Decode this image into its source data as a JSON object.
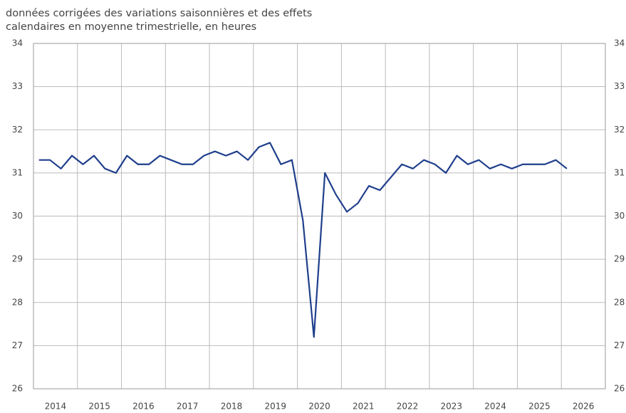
{
  "chart_data": {
    "type": "line",
    "subtitle": [
      "données corrigées des variations saisonnières et des effets",
      "calendaires en moyenne trimestrielle, en heures"
    ],
    "x": [
      2014.125,
      2014.375,
      2014.625,
      2014.875,
      2015.125,
      2015.375,
      2015.625,
      2015.875,
      2016.125,
      2016.375,
      2016.625,
      2016.875,
      2017.125,
      2017.375,
      2017.625,
      2017.875,
      2018.125,
      2018.375,
      2018.625,
      2018.875,
      2019.125,
      2019.375,
      2019.625,
      2019.875,
      2020.125,
      2020.375,
      2020.625,
      2020.875,
      2021.125,
      2021.375,
      2021.625,
      2021.875,
      2022.125,
      2022.375,
      2022.625,
      2022.875,
      2023.125,
      2023.375,
      2023.625,
      2023.875,
      2024.125,
      2024.375,
      2024.625,
      2024.875,
      2025.125,
      2025.375,
      2025.625,
      2025.875,
      2026.125
    ],
    "series": [
      {
        "color": "#1f3f8c",
        "values": [
          31.3,
          31.3,
          31.1,
          31.4,
          31.2,
          31.4,
          31.1,
          31.0,
          31.4,
          31.2,
          31.2,
          31.4,
          31.3,
          31.2,
          31.2,
          31.4,
          31.5,
          31.4,
          31.5,
          31.3,
          31.6,
          31.7,
          31.2,
          31.3,
          29.9,
          27.2,
          31.0,
          30.5,
          30.1,
          30.3,
          30.7,
          30.6,
          30.9,
          31.2,
          31.1,
          31.3,
          31.2,
          31.0,
          31.4,
          31.2,
          31.3,
          31.1,
          31.2,
          31.1,
          31.2,
          31.2,
          31.2,
          31.3,
          31.1
        ]
      }
    ],
    "xlim": [
      2014,
      2027
    ],
    "xticks": [
      2014,
      2015,
      2016,
      2017,
      2018,
      2019,
      2020,
      2021,
      2022,
      2023,
      2024,
      2025,
      2026
    ],
    "ylim": [
      26,
      34
    ],
    "yticks": [
      26,
      27,
      28,
      29,
      30,
      31,
      32,
      33,
      34
    ],
    "grid": true
  }
}
